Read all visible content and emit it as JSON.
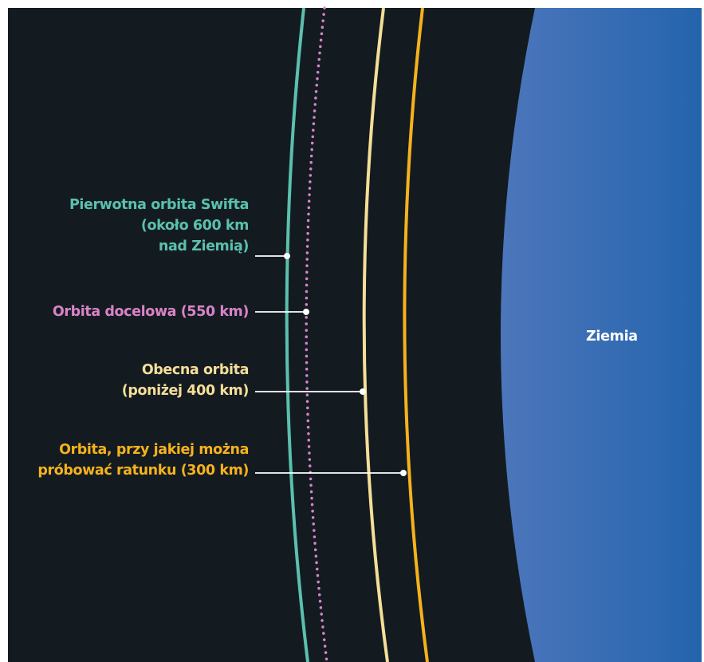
{
  "earth": {
    "label": "Ziemia",
    "color": "#2a65ad"
  },
  "background_color": "#131b21",
  "orbits": [
    {
      "id": "original",
      "lines": [
        "Pierwotna orbita Swifta",
        "(około 600 km",
        "nad Ziemią)"
      ],
      "color": "#5bc0ad",
      "style": "solid"
    },
    {
      "id": "target",
      "lines": [
        "Orbita docelowa (550 km)"
      ],
      "color": "#d983c7",
      "style": "dotted"
    },
    {
      "id": "current",
      "lines": [
        "Obecna orbita",
        "(poniżej 400 km)"
      ],
      "color": "#f6de98",
      "style": "solid"
    },
    {
      "id": "rescue",
      "lines": [
        "Orbita, przy jakiej można",
        "próbować ratunku (300 km)"
      ],
      "color": "#f6b21c",
      "style": "solid"
    }
  ]
}
